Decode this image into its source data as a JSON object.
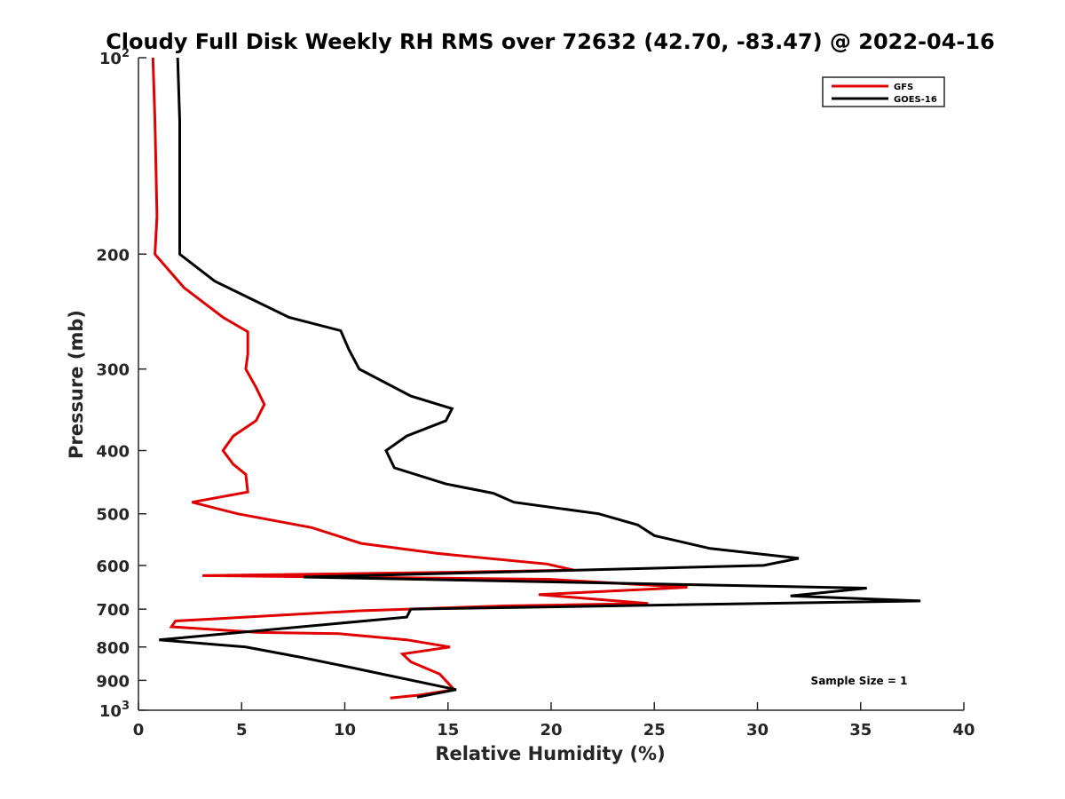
{
  "chart_data": {
    "type": "line",
    "title": "Cloudy Full Disk Weekly RH RMS over 72632 (42.70, -83.47) @ 2022-04-16",
    "xlabel": "Relative Humidity (%)",
    "ylabel": "Pressure (mb)",
    "xlim": [
      0,
      40
    ],
    "ylim": [
      100,
      1000
    ],
    "yscale": "log",
    "y_reversed": true,
    "grid": false,
    "legend_position": "top-right",
    "xticks": [
      {
        "value": 0,
        "label": "0"
      },
      {
        "value": 5,
        "label": "5"
      },
      {
        "value": 10,
        "label": "10"
      },
      {
        "value": 15,
        "label": "15"
      },
      {
        "value": 20,
        "label": "20"
      },
      {
        "value": 25,
        "label": "25"
      },
      {
        "value": 30,
        "label": "30"
      },
      {
        "value": 35,
        "label": "35"
      },
      {
        "value": 40,
        "label": "40"
      }
    ],
    "yticks": [
      {
        "value": 100,
        "label": "10",
        "sup": "2"
      },
      {
        "value": 200,
        "label": "200"
      },
      {
        "value": 300,
        "label": "300"
      },
      {
        "value": 400,
        "label": "400"
      },
      {
        "value": 500,
        "label": "500"
      },
      {
        "value": 600,
        "label": "600"
      },
      {
        "value": 700,
        "label": "700"
      },
      {
        "value": 800,
        "label": "800"
      },
      {
        "value": 900,
        "label": "900"
      },
      {
        "value": 1000,
        "label": "10",
        "sup": "3"
      }
    ],
    "annotation": "Sample Size = 1",
    "series": [
      {
        "name": "GFS",
        "color": "#e00000",
        "points": [
          [
            0.7,
            100
          ],
          [
            0.8,
            125
          ],
          [
            0.9,
            175
          ],
          [
            0.8,
            200
          ],
          [
            2.2,
            225
          ],
          [
            4.1,
            250
          ],
          [
            5.3,
            263
          ],
          [
            5.3,
            285
          ],
          [
            5.2,
            300
          ],
          [
            5.7,
            320
          ],
          [
            6.1,
            340
          ],
          [
            5.7,
            360
          ],
          [
            4.6,
            380
          ],
          [
            4.1,
            400
          ],
          [
            4.6,
            420
          ],
          [
            5.2,
            435
          ],
          [
            5.3,
            463
          ],
          [
            2.6,
            480
          ],
          [
            4.8,
            500
          ],
          [
            8.4,
            525
          ],
          [
            10.8,
            555
          ],
          [
            14.5,
            575
          ],
          [
            19.8,
            597
          ],
          [
            21.1,
            610
          ],
          [
            14.7,
            615
          ],
          [
            3.1,
            622
          ],
          [
            19.9,
            630
          ],
          [
            26.6,
            648
          ],
          [
            19.4,
            665
          ],
          [
            24.7,
            686
          ],
          [
            17.7,
            692
          ],
          [
            10.7,
            704
          ],
          [
            1.8,
            730
          ],
          [
            1.6,
            745
          ],
          [
            5.8,
            760
          ],
          [
            9.7,
            763
          ],
          [
            13.0,
            780
          ],
          [
            15.1,
            800
          ],
          [
            12.8,
            820
          ],
          [
            13.2,
            843
          ],
          [
            14.6,
            880
          ],
          [
            15.3,
            930
          ],
          [
            13.6,
            948
          ],
          [
            12.2,
            958
          ]
        ]
      },
      {
        "name": "GOES-16",
        "color": "#000000",
        "points": [
          [
            1.9,
            100
          ],
          [
            2.0,
            125
          ],
          [
            2.0,
            175
          ],
          [
            2.0,
            200
          ],
          [
            3.7,
            220
          ],
          [
            7.3,
            250
          ],
          [
            9.8,
            262
          ],
          [
            10.2,
            280
          ],
          [
            10.7,
            300
          ],
          [
            13.2,
            330
          ],
          [
            15.2,
            345
          ],
          [
            14.9,
            360
          ],
          [
            13.0,
            380
          ],
          [
            12.0,
            400
          ],
          [
            12.4,
            425
          ],
          [
            14.9,
            450
          ],
          [
            17.2,
            465
          ],
          [
            18.2,
            480
          ],
          [
            22.3,
            500
          ],
          [
            24.2,
            520
          ],
          [
            25.0,
            540
          ],
          [
            27.7,
            565
          ],
          [
            32.0,
            585
          ],
          [
            30.3,
            600
          ],
          [
            8.0,
            625
          ],
          [
            35.3,
            650
          ],
          [
            31.6,
            668
          ],
          [
            37.9,
            680
          ],
          [
            13.2,
            700
          ],
          [
            13.0,
            720
          ],
          [
            1.0,
            780
          ],
          [
            5.2,
            800
          ],
          [
            7.9,
            830
          ],
          [
            10.3,
            860
          ],
          [
            15.4,
            930
          ],
          [
            13.5,
            955
          ]
        ]
      }
    ]
  }
}
